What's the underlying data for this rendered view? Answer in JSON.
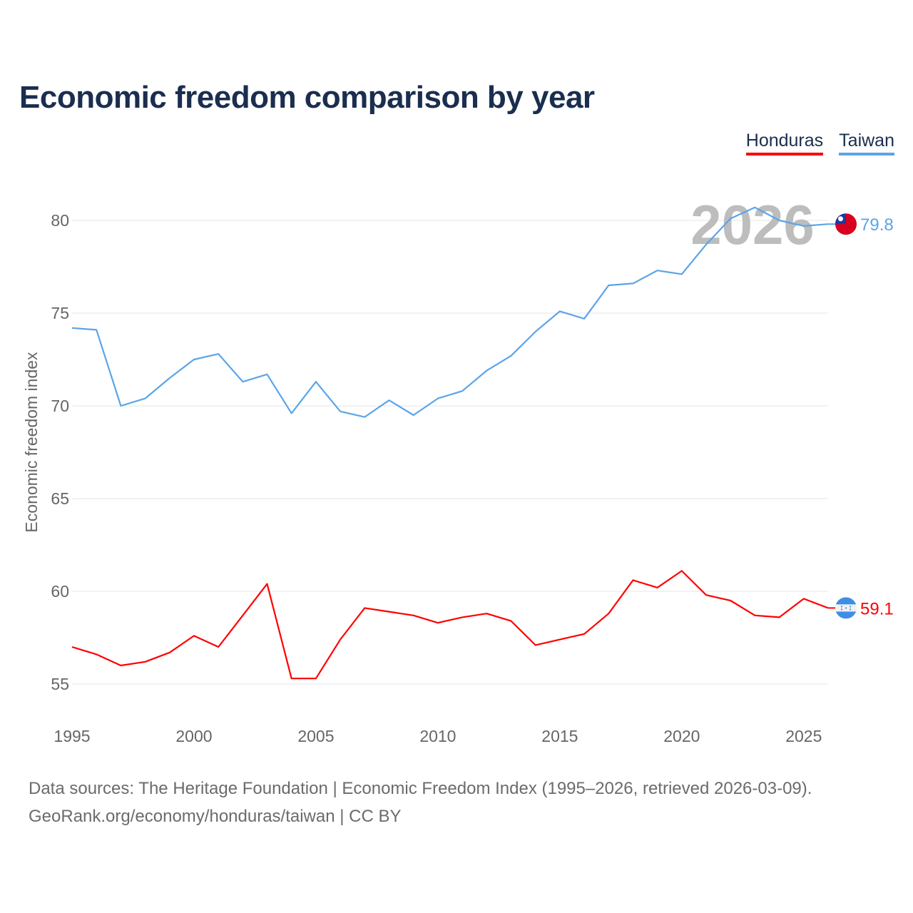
{
  "title": "Economic freedom comparison by year",
  "footer": {
    "line1": "Data sources: The Heritage Foundation | Economic Freedom Index (1995–2026, retrieved 2026-03-09).",
    "line2": "GeoRank.org/economy/honduras/taiwan | CC BY"
  },
  "chart_data": {
    "type": "line",
    "title": "Economic freedom comparison by year",
    "xlabel": "",
    "ylabel": "Economic freedom index",
    "watermark_year": "2026",
    "x": [
      1995,
      1996,
      1997,
      1998,
      1999,
      2000,
      2001,
      2002,
      2003,
      2004,
      2005,
      2006,
      2007,
      2008,
      2009,
      2010,
      2011,
      2012,
      2013,
      2014,
      2015,
      2016,
      2017,
      2018,
      2019,
      2020,
      2021,
      2022,
      2023,
      2024,
      2025,
      2026
    ],
    "xlim": [
      1995,
      2026
    ],
    "ylim": [
      55,
      82
    ],
    "xticks": [
      "1995",
      "2000",
      "2005",
      "2010",
      "2015",
      "2020",
      "2025"
    ],
    "yticks": [
      "55",
      "60",
      "65",
      "70",
      "75",
      "80"
    ],
    "grid": true,
    "legend_position": "top-right",
    "series": [
      {
        "name": "Honduras",
        "color": "#ff0000",
        "end_label": "59.1",
        "flag": "honduras-flag",
        "values": [
          57.0,
          56.6,
          56.0,
          56.2,
          56.7,
          57.6,
          57.0,
          58.7,
          60.4,
          55.3,
          55.3,
          57.4,
          59.1,
          58.9,
          58.7,
          58.3,
          58.6,
          58.8,
          58.4,
          57.1,
          57.4,
          57.7,
          58.8,
          60.6,
          60.2,
          61.1,
          59.8,
          59.5,
          58.7,
          58.6,
          59.6,
          59.1
        ]
      },
      {
        "name": "Taiwan",
        "color": "#5ba4ea",
        "end_label": "79.8",
        "flag": "taiwan-flag",
        "values": [
          74.2,
          74.1,
          70.0,
          70.4,
          71.5,
          72.5,
          72.8,
          71.3,
          71.7,
          69.6,
          71.3,
          69.7,
          69.4,
          70.3,
          69.5,
          70.4,
          70.8,
          71.9,
          72.7,
          74.0,
          75.1,
          74.7,
          76.5,
          76.6,
          77.3,
          77.1,
          78.7,
          80.1,
          80.7,
          80.0,
          79.7,
          79.8
        ]
      }
    ]
  }
}
